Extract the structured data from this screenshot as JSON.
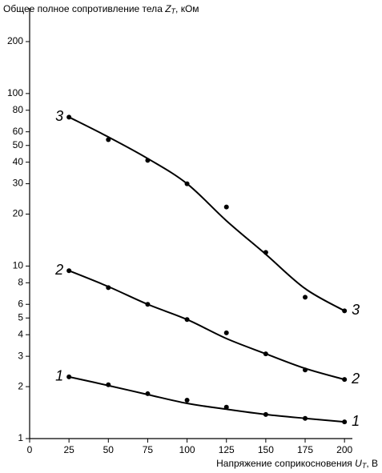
{
  "chart_data": {
    "type": "line",
    "y_label": [
      "Общее полное сопротивление тела ",
      "Z",
      "T",
      ", кОм"
    ],
    "x_label": [
      "Напряжение соприкосновения ",
      "U",
      "T",
      ", В"
    ],
    "x": [
      25,
      50,
      75,
      100,
      125,
      150,
      175,
      200
    ],
    "xlim": [
      0,
      205
    ],
    "xticks": [
      0,
      25,
      50,
      75,
      100,
      125,
      150,
      175,
      200
    ],
    "ylim": [
      1,
      300
    ],
    "y_scale": "log",
    "yticks": [
      1,
      2,
      3,
      4,
      5,
      6,
      8,
      10,
      20,
      30,
      40,
      50,
      60,
      80,
      100,
      200
    ],
    "series": [
      {
        "name": "1",
        "color": "#000000",
        "values": [
          2.28,
          2.05,
          1.82,
          1.67,
          1.52,
          1.38,
          1.31,
          1.25
        ],
        "fit": [
          2.28,
          2.03,
          1.8,
          1.6,
          1.48,
          1.38,
          1.31,
          1.25
        ]
      },
      {
        "name": "2",
        "color": "#000000",
        "values": [
          9.4,
          7.5,
          6.0,
          4.9,
          4.1,
          3.1,
          2.5,
          2.2
        ],
        "fit": [
          9.4,
          7.6,
          6.0,
          4.9,
          3.8,
          3.1,
          2.55,
          2.2
        ]
      },
      {
        "name": "3",
        "color": "#000000",
        "values": [
          73,
          54,
          41,
          30,
          22,
          12,
          6.6,
          5.5
        ],
        "fit": [
          73,
          56,
          42,
          30,
          18.3,
          11.7,
          7.4,
          5.5
        ]
      }
    ]
  }
}
